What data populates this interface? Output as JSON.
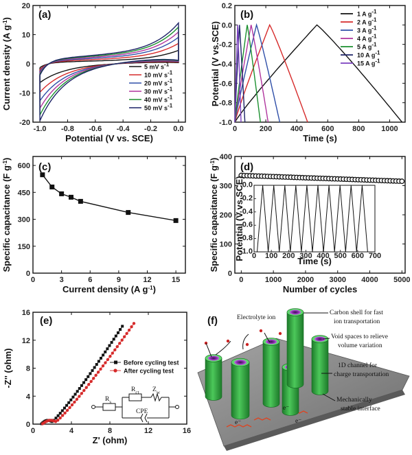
{
  "colors": {
    "black": "#111111",
    "red": "#d62a2a",
    "blue": "#2f4fa8",
    "magenta": "#b0339d",
    "green": "#1a8f2e",
    "navy": "#1c2266",
    "purple": "#7a3fbf",
    "rod": "#3ab54a",
    "rodInner": "#9b3dbf",
    "plate": "#8a8a8a",
    "ion": "#c22"
  },
  "panels": {
    "a": {
      "letter": "(a)"
    },
    "b": {
      "letter": "(b)"
    },
    "c": {
      "letter": "(c)"
    },
    "d": {
      "letter": "(d)"
    },
    "e": {
      "letter": "(e)"
    },
    "f": {
      "letter": "(f)"
    }
  },
  "chart_data": [
    {
      "id": "a",
      "type": "line",
      "title": "",
      "xlabel": "Potential (V vs. SCE)",
      "ylabel": "Current density (A g⁻¹)",
      "xlim": [
        -1.05,
        0.05
      ],
      "ylim": [
        -20,
        20
      ],
      "xticks": [
        -1.0,
        -0.8,
        -0.6,
        -0.4,
        -0.2,
        0.0
      ],
      "xtick_labels": [
        "-1.0",
        "-0.8",
        "-0.6",
        "-0.4",
        "-0.2",
        "0.0"
      ],
      "yticks": [
        -20,
        -10,
        0,
        10,
        20
      ],
      "ytick_labels": [
        "-20",
        "-10",
        "0",
        "10",
        "20"
      ],
      "legend_position": "bottom-right",
      "series": [
        {
          "name": "5 mV s⁻¹",
          "color": "#111111",
          "scale": 0.33
        },
        {
          "name": "10 mV s⁻¹",
          "color": "#d62a2a",
          "scale": 0.5
        },
        {
          "name": "20 mV s⁻¹",
          "color": "#2f4fa8",
          "scale": 0.65
        },
        {
          "name": "30 mV s⁻¹",
          "color": "#b0339d",
          "scale": 0.78
        },
        {
          "name": "40 mV s⁻¹",
          "color": "#1a8f2e",
          "scale": 0.9
        },
        {
          "name": "50 mV s⁻¹",
          "color": "#1c2266",
          "scale": 1.0
        }
      ]
    },
    {
      "id": "b",
      "type": "line",
      "xlabel": "Time (s)",
      "ylabel": "Potential (V vs.SCE)",
      "xlim": [
        0,
        1100
      ],
      "ylim": [
        -1.0,
        0.2
      ],
      "xticks": [
        0,
        200,
        400,
        600,
        800,
        1000
      ],
      "xtick_labels": [
        "0",
        "200",
        "400",
        "600",
        "800",
        "1000"
      ],
      "yticks": [
        -1.0,
        -0.8,
        -0.6,
        -0.4,
        -0.2,
        0.0,
        0.2
      ],
      "ytick_labels": [
        "-1.0",
        "-0.8",
        "-0.6",
        "-0.4",
        "-0.2",
        "0.0",
        "0.2"
      ],
      "legend_position": "top-right",
      "series": [
        {
          "name": "1 A g⁻¹",
          "color": "#111111",
          "charge_end": 530,
          "end": 1080
        },
        {
          "name": "2 A g⁻¹",
          "color": "#d62a2a",
          "charge_end": 225,
          "end": 470
        },
        {
          "name": "3 A g⁻¹",
          "color": "#2f4fa8",
          "charge_end": 140,
          "end": 290
        },
        {
          "name": "4 A g⁻¹",
          "color": "#b0339d",
          "charge_end": 105,
          "end": 215
        },
        {
          "name": "5 A g⁻¹",
          "color": "#1a8f2e",
          "charge_end": 80,
          "end": 165
        },
        {
          "name": "10 A g⁻¹",
          "color": "#1c2266",
          "charge_end": 30,
          "end": 65
        },
        {
          "name": "15 A g⁻¹",
          "color": "#7a3fbf",
          "charge_end": 18,
          "end": 40
        }
      ]
    },
    {
      "id": "c",
      "type": "line",
      "xlabel": "Current density (A g⁻¹)",
      "ylabel": "Specific capacitance (F g⁻¹)",
      "xlim": [
        0,
        16
      ],
      "ylim": [
        0,
        650
      ],
      "xticks": [
        0,
        3,
        6,
        9,
        12,
        15
      ],
      "xtick_labels": [
        "0",
        "3",
        "6",
        "9",
        "12",
        "15"
      ],
      "yticks": [
        0,
        150,
        300,
        450,
        600
      ],
      "ytick_labels": [
        "0",
        "150",
        "300",
        "450",
        "600"
      ],
      "x": [
        1,
        2,
        3,
        4,
        5,
        10,
        15
      ],
      "y": [
        548,
        480,
        442,
        423,
        400,
        338,
        293
      ]
    },
    {
      "id": "d",
      "type": "scatter",
      "xlabel": "Number of cycles",
      "ylabel": "Specific capacitance (F g⁻¹)",
      "xlim": [
        -200,
        5100
      ],
      "ylim": [
        0,
        400
      ],
      "xticks": [
        0,
        1000,
        2000,
        3000,
        4000,
        5000
      ],
      "xtick_labels": [
        "0",
        "1000",
        "2000",
        "3000",
        "4000",
        "5000"
      ],
      "yticks": [
        0,
        100,
        200,
        300,
        400
      ],
      "ytick_labels": [
        "0",
        "100",
        "200",
        "300",
        "400"
      ],
      "start_value": 335,
      "end_value": 315,
      "points": 56,
      "inset": {
        "xlabel": "Time (s)",
        "ylabel": "Potential (V vs.SCE)",
        "xlim": [
          0,
          700
        ],
        "ylim": [
          -1.0,
          0.0
        ],
        "xticks": [
          0,
          100,
          200,
          300,
          400,
          500,
          600,
          700
        ],
        "xtick_labels": [
          "0",
          "100",
          "200",
          "300",
          "400",
          "500",
          "600",
          "700"
        ],
        "yticks": [
          -1.0,
          -0.8,
          -0.6,
          -0.4,
          -0.2,
          0.0
        ],
        "ytick_labels": [
          "-1.0",
          "-0.8",
          "-0.6",
          "-0.4",
          "-0.2",
          "0.0"
        ],
        "period": 64,
        "cycles": 10
      }
    },
    {
      "id": "e",
      "type": "scatter",
      "xlabel": "Z' (ohm)",
      "ylabel": "-Z'' (ohm)",
      "xlim": [
        0,
        16
      ],
      "ylim": [
        0,
        16
      ],
      "xticks": [
        0,
        4,
        8,
        12,
        16
      ],
      "xtick_labels": [
        "0",
        "4",
        "8",
        "12",
        "16"
      ],
      "yticks": [
        0,
        4,
        8,
        12,
        16
      ],
      "ytick_labels": [
        "0",
        "4",
        "8",
        "12",
        "16"
      ],
      "legend_position": "middle-right",
      "series": [
        {
          "name": "Before cycling test",
          "color": "#111111",
          "marker": "square",
          "x_start": 0.9,
          "knee_x": 2.0,
          "x_end": 9.3,
          "y_end": 14.0
        },
        {
          "name": "After cycling test",
          "color": "#d62a2a",
          "marker": "circle",
          "x_start": 1.0,
          "knee_x": 2.4,
          "x_end": 10.5,
          "y_end": 14.4
        }
      ],
      "circuit": {
        "rs": "R",
        "rs_sub": "s",
        "rct": "R",
        "rct_sub": "ct",
        "zw": "Z",
        "zw_sub": "w",
        "cpe": "CPE"
      }
    }
  ],
  "schematic": {
    "electrolyte": "Electrolyte ion",
    "carbon_shell_1": "Carbon shell for fast",
    "carbon_shell_2": "ion transportation",
    "void_1": "Void spaces to relieve",
    "void_2": "volume variation",
    "channel_1": "1D channel for",
    "channel_2": "charge transportation",
    "interface_1": "Mechanically",
    "interface_2": "stable interface",
    "electron_1": "e⁻",
    "electron_2": "e⁻",
    "electron_3": "e⁻"
  }
}
